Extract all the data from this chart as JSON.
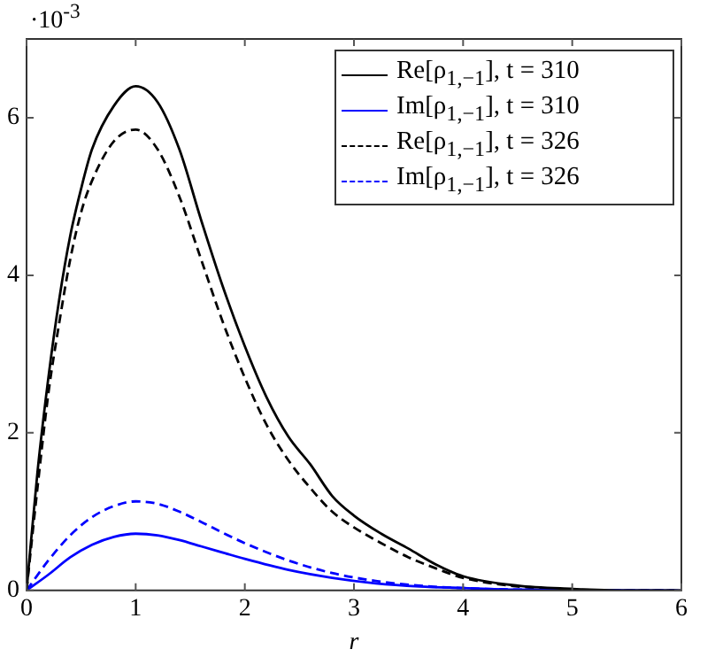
{
  "chart_data": {
    "type": "line",
    "xlabel": "r",
    "annotations": [
      "·10$^{-3}$"
    ],
    "xlim": [
      0,
      6
    ],
    "xticks": [
      0,
      1,
      2,
      3,
      4,
      5,
      6
    ],
    "ylim": [
      0,
      7
    ],
    "yticks": [
      0,
      2,
      4,
      6
    ],
    "grid": false,
    "legend": "top right",
    "marker": "none",
    "series": [
      {
        "name": "Re[ρ$_{1,−1}$], t = 310",
        "color": "#000000",
        "line_style": "solid",
        "x": [
          0,
          0.1,
          0.2,
          0.3,
          0.4,
          0.5,
          0.6,
          0.8,
          1,
          1.2,
          1.4,
          1.6,
          1.8,
          2,
          2.2,
          2.4,
          2.6,
          2.8,
          3,
          3.25,
          3.5,
          3.75,
          4,
          4.5,
          5,
          5.5,
          6
        ],
        "values": [
          0,
          1.5,
          2.7,
          3.7,
          4.5,
          5.1,
          5.6,
          6.15,
          6.4,
          6.2,
          5.6,
          4.7,
          3.85,
          3.1,
          2.45,
          1.95,
          1.6,
          1.2,
          0.95,
          0.72,
          0.53,
          0.33,
          0.18,
          0.06,
          0.02,
          0,
          0
        ]
      },
      {
        "name": "Im[ρ$_{1,−1}$], t = 310",
        "color": "#0000ff",
        "line_style": "solid",
        "x": [
          0,
          0.2,
          0.4,
          0.6,
          0.8,
          1,
          1.2,
          1.4,
          1.6,
          1.8,
          2,
          2.4,
          2.8,
          3.2,
          3.6,
          4,
          4.5,
          6
        ],
        "values": [
          0,
          0.2,
          0.42,
          0.58,
          0.68,
          0.72,
          0.7,
          0.64,
          0.56,
          0.48,
          0.4,
          0.26,
          0.16,
          0.09,
          0.05,
          0.03,
          0.01,
          0
        ]
      },
      {
        "name": "Re[ρ$_{1,−1}$], t = 326",
        "color": "#000000",
        "line_style": "dashed",
        "x": [
          0,
          0.1,
          0.2,
          0.3,
          0.4,
          0.5,
          0.6,
          0.8,
          1,
          1.2,
          1.4,
          1.6,
          1.8,
          2,
          2.2,
          2.4,
          2.6,
          2.8,
          3,
          3.25,
          3.5,
          3.75,
          4,
          4.5,
          5,
          5.5,
          6
        ],
        "values": [
          0,
          1.3,
          2.5,
          3.4,
          4.2,
          4.8,
          5.2,
          5.7,
          5.85,
          5.6,
          5.0,
          4.2,
          3.4,
          2.7,
          2.1,
          1.65,
          1.3,
          1.0,
          0.8,
          0.6,
          0.42,
          0.28,
          0.16,
          0.05,
          0.01,
          0,
          0
        ]
      },
      {
        "name": "Im[ρ$_{1,−1}$], t = 326",
        "color": "#0000ff",
        "line_style": "dashed",
        "x": [
          0,
          0.2,
          0.4,
          0.6,
          0.8,
          1,
          1.2,
          1.4,
          1.6,
          1.8,
          2,
          2.4,
          2.8,
          3.2,
          3.6,
          4,
          4.5,
          6
        ],
        "values": [
          0,
          0.38,
          0.7,
          0.93,
          1.07,
          1.13,
          1.1,
          1.0,
          0.87,
          0.73,
          0.6,
          0.38,
          0.22,
          0.12,
          0.06,
          0.03,
          0.01,
          0
        ]
      }
    ]
  }
}
